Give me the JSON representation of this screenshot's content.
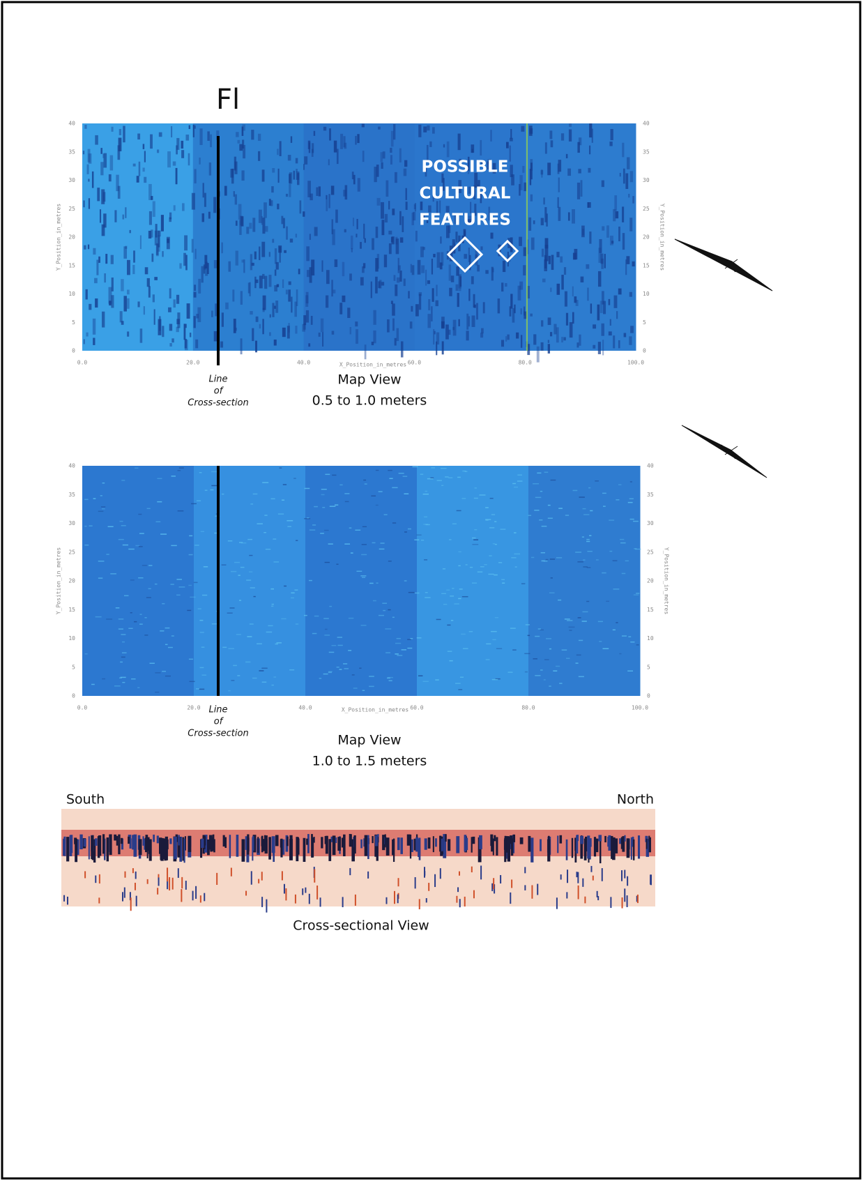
{
  "figure_label": "Fl",
  "maps": [
    {
      "x_axis_title": "X_Position_in_metres",
      "y_axis_title": "Y_Position_in_metres",
      "x_ticks": [
        "0.0",
        "20.0",
        "40.0",
        "60.0",
        "80.0",
        "100.0"
      ],
      "y_ticks": [
        "0",
        "5",
        "10",
        "15",
        "20",
        "25",
        "30",
        "35",
        "40"
      ],
      "line_label": [
        "Line",
        "of",
        "Cross-section"
      ],
      "view_title": "Map View",
      "depth": "0.5 to 1.0 meters",
      "annotation": [
        "POSSIBLE",
        "CULTURAL",
        "FEATURES"
      ]
    },
    {
      "x_axis_title": "X_Position_in_metres",
      "y_axis_title": "Y_Position_in_metres",
      "x_ticks": [
        "0.0",
        "20.0",
        "40.0",
        "60.0",
        "80.0",
        "100.0"
      ],
      "y_ticks": [
        "0",
        "5",
        "10",
        "15",
        "20",
        "25",
        "30",
        "35",
        "40"
      ],
      "line_label": [
        "Line",
        "of",
        "Cross-section"
      ],
      "view_title": "Map View",
      "depth": "1.0 to 1.5 meters"
    }
  ],
  "cross_section": {
    "left_label": "South",
    "right_label": "North",
    "title": "Cross-sectional View"
  }
}
